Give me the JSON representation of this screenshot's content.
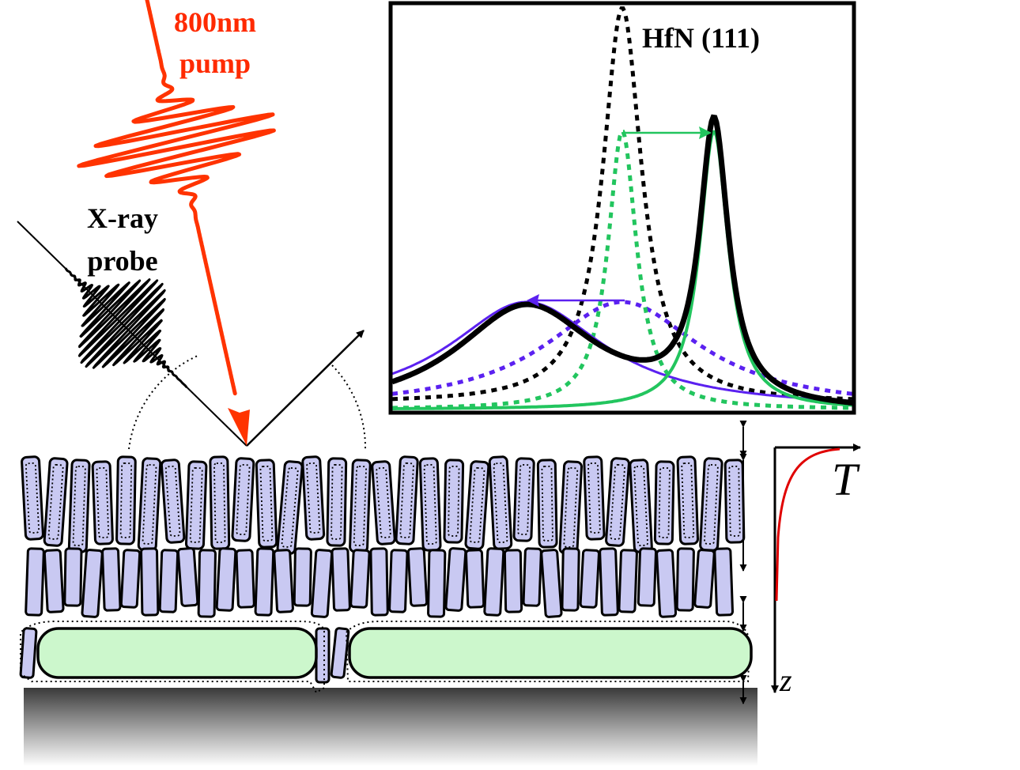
{
  "labels": {
    "pump_line1": "800nm",
    "pump_line2": "pump",
    "probe_line1": "X-ray",
    "probe_line2": "probe",
    "peak_label": "HfN (111)",
    "temperature_axis": "T",
    "depth_axis": "z"
  },
  "colors": {
    "pump": "#ff3300",
    "pump_text": "#ff2a00",
    "black": "#000000",
    "green": "#22c55e",
    "purple": "#5b21f0",
    "grain_fill": "#c9c9f2",
    "island_fill": "#ccf7cc",
    "temperature_curve": "#e00000"
  },
  "icons": {
    "pump_pulse": "wave-packet-icon",
    "xray_pulse": "xray-wave-packet-icon"
  }
}
